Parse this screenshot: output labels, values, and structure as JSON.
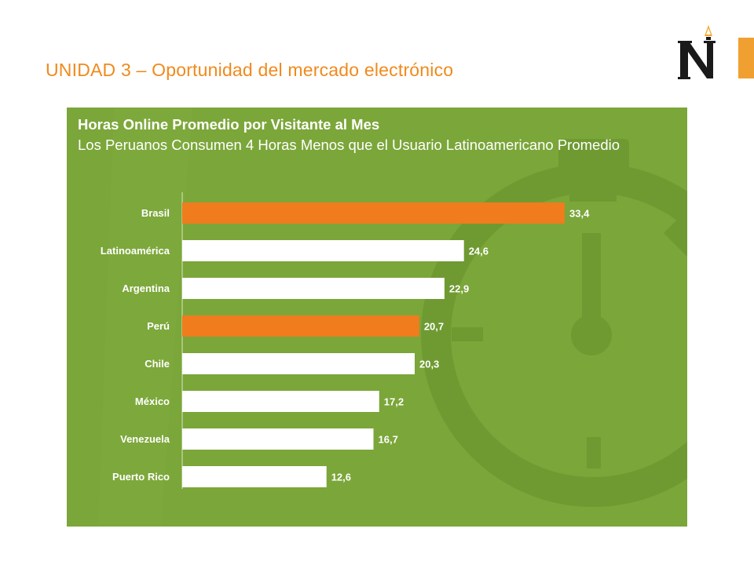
{
  "slide": {
    "title": "UNIDAD 3 – Oportunidad del mercado electrónico"
  },
  "colors": {
    "title": "#f08a1c",
    "panel": "#7ba639",
    "highlight_bar": "#f07c1e",
    "default_bar": "#ffffff",
    "logo": "#1a1a1a",
    "logo_accent": "#f5a623"
  },
  "icons": {
    "logo": "university-logo-n-icon",
    "background": "stopwatch-icon"
  },
  "chart_data": {
    "type": "bar",
    "orientation": "horizontal",
    "title": "Horas Online Promedio por Visitante al Mes",
    "subtitle": "Los Peruanos Consumen 4 Horas Menos que el Usuario Latinoamericano Promedio",
    "categories": [
      "Brasil",
      "Latinoamérica",
      "Argentina",
      "Perú",
      "Chile",
      "México",
      "Venezuela",
      "Puerto Rico"
    ],
    "values": [
      33.4,
      24.6,
      22.9,
      20.7,
      20.3,
      17.2,
      16.7,
      12.6
    ],
    "value_labels": [
      "33,4",
      "24,6",
      "22,9",
      "20,7",
      "20,3",
      "17,2",
      "16,7",
      "12,6"
    ],
    "highlighted": [
      "Brasil",
      "Perú"
    ],
    "xlim": [
      0,
      33.4
    ],
    "grid": false,
    "legend": "none"
  }
}
